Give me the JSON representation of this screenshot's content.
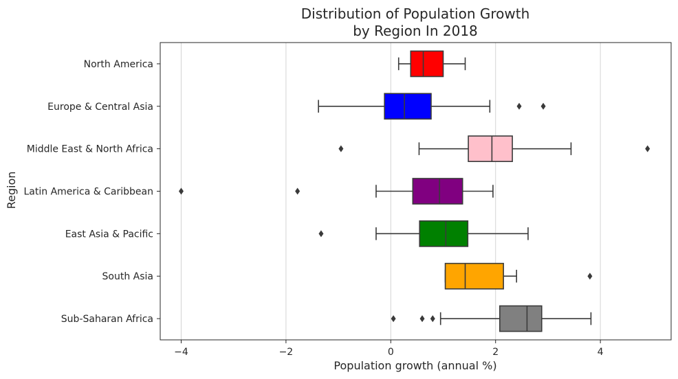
{
  "chart_data": {
    "type": "box",
    "orientation": "horizontal",
    "title": [
      "Distribution of Population Growth",
      "by Region In 2018"
    ],
    "xlabel": "Population growth (annual %)",
    "ylabel": "Region",
    "xlim": [
      -4.4,
      5.35
    ],
    "xticks": [
      -4,
      -2,
      0,
      2,
      4
    ],
    "xtick_labels": [
      "−4",
      "−2",
      "0",
      "2",
      "4"
    ],
    "grid": "vertical",
    "categories": [
      "North America",
      "Europe & Central Asia",
      "Middle East & North Africa",
      "Latin America & Caribbean",
      "East Asia & Pacific",
      "South Asia",
      "Sub-Saharan Africa"
    ],
    "boxes": [
      {
        "name": "North America",
        "color": "#ff0000",
        "whisker_low": 0.15,
        "q1": 0.38,
        "median": 0.62,
        "q3": 1.0,
        "whisker_high": 1.42,
        "outliers": []
      },
      {
        "name": "Europe & Central Asia",
        "color": "#0000ff",
        "whisker_low": -1.38,
        "q1": -0.12,
        "median": 0.26,
        "q3": 0.77,
        "whisker_high": 1.89,
        "outliers": [
          2.45,
          2.91
        ]
      },
      {
        "name": "Middle East & North Africa",
        "color": "#ffc0cb",
        "whisker_low": 0.54,
        "q1": 1.48,
        "median": 1.93,
        "q3": 2.32,
        "whisker_high": 3.44,
        "outliers": [
          -0.95,
          4.9
        ]
      },
      {
        "name": "Latin America & Caribbean",
        "color": "#800080",
        "whisker_low": -0.28,
        "q1": 0.42,
        "median": 0.93,
        "q3": 1.37,
        "whisker_high": 1.95,
        "outliers": [
          -4.0,
          -1.78
        ]
      },
      {
        "name": "East Asia & Pacific",
        "color": "#008000",
        "whisker_low": -0.28,
        "q1": 0.55,
        "median": 1.05,
        "q3": 1.47,
        "whisker_high": 2.62,
        "outliers": [
          -1.33
        ]
      },
      {
        "name": "South Asia",
        "color": "#ffa500",
        "whisker_low": 1.04,
        "q1": 1.04,
        "median": 1.42,
        "q3": 2.15,
        "whisker_high": 2.4,
        "outliers": [
          3.8
        ]
      },
      {
        "name": "Sub-Saharan Africa",
        "color": "#808080",
        "whisker_low": 0.95,
        "q1": 2.08,
        "median": 2.6,
        "q3": 2.88,
        "whisker_high": 3.82,
        "outliers": [
          0.05,
          0.6,
          0.8
        ]
      }
    ]
  }
}
